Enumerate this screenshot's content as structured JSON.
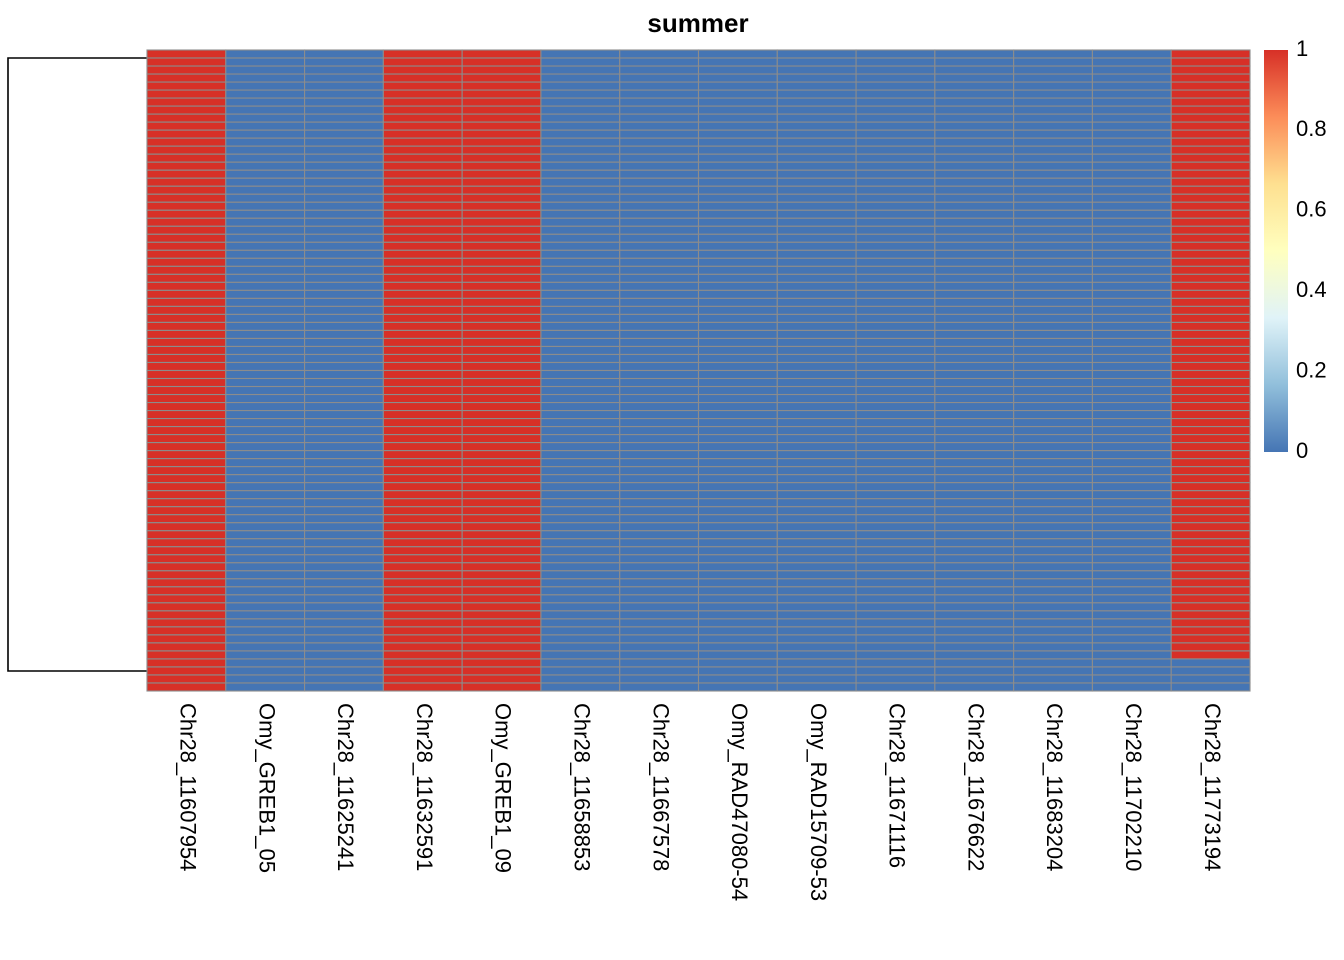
{
  "chart_data": {
    "type": "heatmap",
    "title": "summer",
    "columns": [
      "Chr28_11607954",
      "Omy_GREB1_05",
      "Chr28_11625241",
      "Chr28_11632591",
      "Omy_GREB1_09",
      "Chr28_11658853",
      "Chr28_11667578",
      "Omy_RAD47080-54",
      "Omy_RAD15709-53",
      "Chr28_11671116",
      "Chr28_11676622",
      "Chr28_11683204",
      "Chr28_11702210",
      "Chr28_11773194"
    ],
    "row_count": 80,
    "column_values": [
      1,
      0,
      0,
      1,
      1,
      0,
      0,
      0,
      0,
      0,
      0,
      0,
      0,
      1
    ],
    "exceptions": [
      {
        "column": "Chr28_11773194",
        "rows_from_end": 4,
        "value": 0
      }
    ],
    "color_scale": {
      "range": [
        0,
        1
      ],
      "ticks": [
        "1",
        "0.8",
        "0.6",
        "0.4",
        "0.2",
        "0"
      ],
      "colors": [
        "#4575B4",
        "#91BFDB",
        "#E0F3F8",
        "#FFFFBF",
        "#FEE090",
        "#FC8D59",
        "#D73027"
      ]
    },
    "cell_border_color": "#8c8c8c",
    "row_dendrogram": true,
    "legend_position": "right"
  }
}
